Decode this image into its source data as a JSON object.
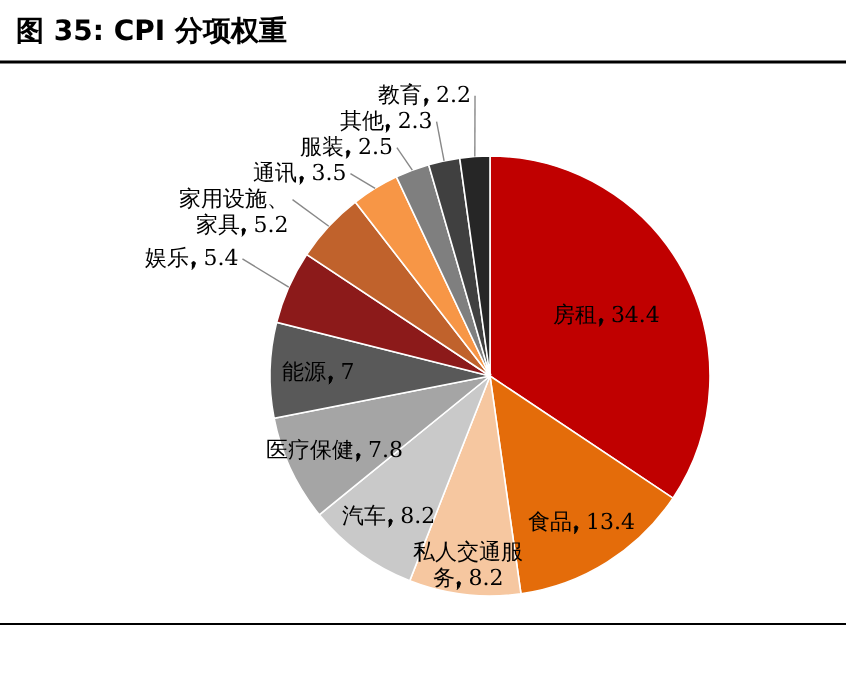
{
  "chart_data": {
    "type": "pie",
    "title": "图 35: CPI 分项权重",
    "categories": [
      "房租",
      "食品",
      "私人交通服务",
      "汽车",
      "医疗保健",
      "能源",
      "娱乐",
      "家用设施、家具",
      "通讯",
      "服装",
      "其他",
      "教育"
    ],
    "values": [
      34.4,
      13.4,
      8.2,
      8.2,
      7.8,
      7.0,
      5.4,
      5.2,
      3.5,
      2.5,
      2.3,
      2.2
    ],
    "colors": [
      "#c00000",
      "#e46c0a",
      "#f6c7a0",
      "#c9c9c9",
      "#a5a5a5",
      "#595959",
      "#8c1a1a",
      "#c0622c",
      "#f79646",
      "#7f7f7f",
      "#404040",
      "#262626"
    ],
    "data_labels": true,
    "legend": false
  }
}
